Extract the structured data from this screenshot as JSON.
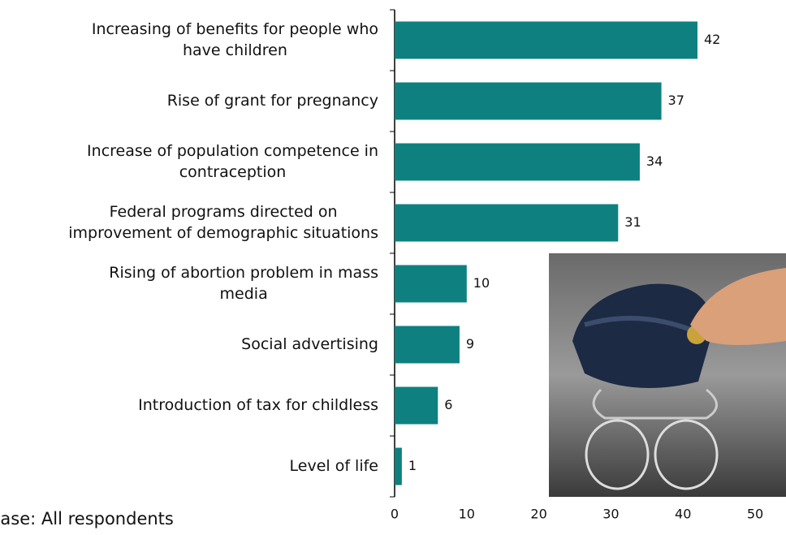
{
  "chart_data": {
    "type": "bar",
    "orientation": "horizontal",
    "categories": [
      [
        "Increasing of benefits for people who",
        "have children"
      ],
      [
        "Rise of grant for pregnancy"
      ],
      [
        "Increase of population competence in",
        "contraception"
      ],
      [
        "Federal programs directed on",
        "improvement of demographic situations"
      ],
      [
        "Rising of abortion problem in mass",
        "media"
      ],
      [
        "Social advertising"
      ],
      [
        "Introduction of tax for childless"
      ],
      [
        "Level of life"
      ]
    ],
    "values": [
      42,
      37,
      34,
      31,
      10,
      9,
      6,
      1
    ],
    "color": "#0e8080",
    "xlim": [
      0,
      50
    ],
    "xticks": [
      0,
      10,
      20,
      30,
      40,
      50
    ],
    "footnote": "Base: All respondents"
  }
}
